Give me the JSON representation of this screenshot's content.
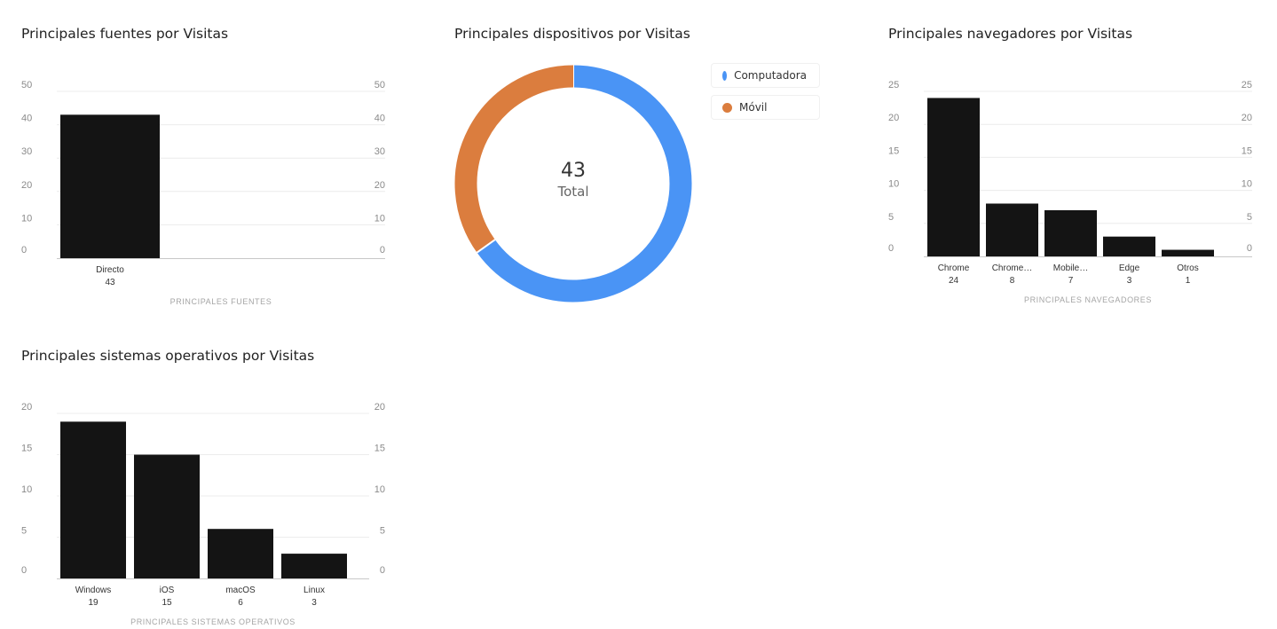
{
  "colors": {
    "bar": "#141414",
    "grid": "#ececec",
    "axis": "#c8c8c8",
    "computadora": "#4a94f5",
    "movil": "#db7d3e"
  },
  "charts": {
    "fuentes": {
      "title": "Principales fuentes por Visitas",
      "chart_data": {
        "type": "bar",
        "title": "Principales fuentes por Visitas",
        "categories": [
          "Directo"
        ],
        "values": [
          43
        ],
        "value_labels": [
          "43"
        ],
        "xlabel": "PRINCIPALES FUENTES",
        "ylabel": "",
        "ylim": [
          0,
          50
        ],
        "yticks": [
          0,
          10,
          20,
          30,
          40,
          50
        ],
        "grid": true
      }
    },
    "dispositivos": {
      "title": "Principales dispositivos por Visitas",
      "total_value": "43",
      "total_label": "Total",
      "chart_data": {
        "type": "pie",
        "title": "Principales dispositivos por Visitas",
        "categories": [
          "Computadora",
          "Móvil"
        ],
        "values": [
          28,
          15
        ],
        "total": 43,
        "legend_position": "right"
      }
    },
    "navegadores": {
      "title": "Principales navegadores por Visitas",
      "chart_data": {
        "type": "bar",
        "title": "Principales navegadores por Visitas",
        "categories": [
          "Chrome",
          "Chrome…",
          "Mobile…",
          "Edge",
          "Otros"
        ],
        "values": [
          24,
          8,
          7,
          3,
          1
        ],
        "value_labels": [
          "24",
          "8",
          "7",
          "3",
          "1"
        ],
        "xlabel": "PRINCIPALES NAVEGADORES",
        "ylabel": "",
        "ylim": [
          0,
          25
        ],
        "yticks": [
          0,
          5,
          10,
          15,
          20,
          25
        ],
        "grid": true
      }
    },
    "sistemas": {
      "title": "Principales sistemas operativos por Visitas",
      "chart_data": {
        "type": "bar",
        "title": "Principales sistemas operativos por Visitas",
        "categories": [
          "Windows",
          "iOS",
          "macOS",
          "Linux"
        ],
        "values": [
          19,
          15,
          6,
          3
        ],
        "value_labels": [
          "19",
          "15",
          "6",
          "3"
        ],
        "xlabel": "PRINCIPALES SISTEMAS OPERATIVOS",
        "ylabel": "",
        "ylim": [
          0,
          20
        ],
        "yticks": [
          0,
          5,
          10,
          15,
          20
        ],
        "grid": true
      }
    }
  }
}
